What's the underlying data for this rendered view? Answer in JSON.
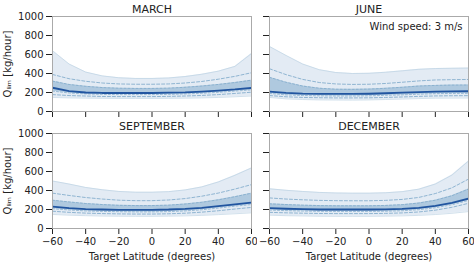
{
  "chart_data": [
    {
      "type": "line",
      "title": "MARCH",
      "ylabel": "Qₗᵢₘ [kg/hour]",
      "tick_labels": "y",
      "x": [
        -60,
        -50,
        -40,
        -30,
        -20,
        -10,
        0,
        10,
        20,
        30,
        40,
        50,
        60
      ],
      "xlim": [
        -60,
        60
      ],
      "ylim": [
        0,
        1000
      ],
      "xticks": [
        -60,
        -40,
        -20,
        0,
        20,
        40,
        60
      ],
      "yticks": [
        0,
        200,
        400,
        600,
        800,
        1000
      ],
      "series": [
        {
          "type": "area",
          "color": "#c8d8ea",
          "lower": [
            148,
            143,
            140,
            138,
            137,
            137,
            137,
            138,
            140,
            143,
            148,
            155,
            163
          ],
          "upper": [
            640,
            500,
            415,
            375,
            355,
            348,
            348,
            353,
            368,
            392,
            425,
            475,
            610
          ]
        },
        {
          "type": "area",
          "color": "#7ba7c9",
          "lower": [
            215,
            195,
            185,
            180,
            178,
            178,
            178,
            180,
            185,
            192,
            202,
            215,
            228
          ],
          "upper": [
            320,
            285,
            265,
            252,
            245,
            243,
            243,
            246,
            255,
            268,
            285,
            305,
            330
          ]
        },
        {
          "type": "line",
          "color": "#b8cfe0",
          "line_style": "solid",
          "values": [
            640,
            500,
            415,
            375,
            355,
            348,
            348,
            353,
            368,
            392,
            425,
            475,
            610
          ]
        },
        {
          "type": "line",
          "color": "#b8cfe0",
          "line_style": "solid",
          "values": [
            148,
            143,
            140,
            138,
            137,
            137,
            137,
            138,
            140,
            143,
            148,
            155,
            163
          ]
        },
        {
          "type": "line",
          "color": "#7ba7c9",
          "line_style": "dashed",
          "values": [
            178,
            168,
            163,
            158,
            157,
            157,
            157,
            159,
            163,
            169,
            178,
            190,
            203
          ]
        },
        {
          "type": "line",
          "color": "#7ba7c9",
          "line_style": "dashed",
          "values": [
            390,
            345,
            318,
            300,
            290,
            287,
            287,
            290,
            300,
            316,
            340,
            370,
            408
          ]
        },
        {
          "type": "line",
          "color": "#7ba7c9",
          "line_style": "dotted",
          "values": [
            215,
            195,
            185,
            180,
            178,
            178,
            178,
            180,
            185,
            192,
            202,
            215,
            228
          ]
        },
        {
          "type": "line",
          "color": "#7ba7c9",
          "line_style": "dotted",
          "values": [
            320,
            285,
            265,
            252,
            245,
            243,
            243,
            246,
            255,
            268,
            285,
            305,
            330
          ]
        },
        {
          "type": "line",
          "color": "#2155a0",
          "line_style": "thick",
          "values": [
            250,
            215,
            200,
            195,
            195,
            195,
            195,
            198,
            202,
            210,
            220,
            232,
            248
          ]
        }
      ]
    },
    {
      "type": "line",
      "title": "JUNE",
      "tick_labels": false,
      "annotation": "Wind speed: 3 m/s",
      "x": [
        -60,
        -50,
        -40,
        -30,
        -20,
        -10,
        0,
        10,
        20,
        30,
        40,
        50,
        60
      ],
      "xlim": [
        -60,
        60
      ],
      "ylim": [
        0,
        1000
      ],
      "xticks": [
        -60,
        -40,
        -20,
        0,
        20,
        40,
        60
      ],
      "yticks": [
        0,
        200,
        400,
        600,
        800,
        1000
      ],
      "series": [
        {
          "type": "area",
          "color": "#c8d8ea",
          "lower": [
            148,
            133,
            126,
            122,
            121,
            120,
            122,
            126,
            131,
            136,
            140,
            141,
            142
          ],
          "upper": [
            685,
            590,
            500,
            440,
            410,
            400,
            402,
            413,
            428,
            444,
            452,
            455,
            457
          ]
        },
        {
          "type": "area",
          "color": "#7ba7c9",
          "lower": [
            190,
            175,
            168,
            165,
            163,
            163,
            165,
            170,
            175,
            182,
            188,
            190,
            191
          ],
          "upper": [
            360,
            308,
            268,
            245,
            235,
            233,
            236,
            244,
            255,
            268,
            275,
            278,
            279
          ]
        },
        {
          "type": "line",
          "color": "#b8cfe0",
          "line_style": "solid",
          "values": [
            685,
            590,
            500,
            440,
            410,
            400,
            402,
            413,
            428,
            444,
            452,
            455,
            457
          ]
        },
        {
          "type": "line",
          "color": "#b8cfe0",
          "line_style": "solid",
          "values": [
            148,
            133,
            126,
            122,
            121,
            120,
            122,
            126,
            131,
            136,
            140,
            141,
            142
          ]
        },
        {
          "type": "line",
          "color": "#7ba7c9",
          "line_style": "dashed",
          "values": [
            168,
            155,
            148,
            145,
            143,
            143,
            144,
            148,
            153,
            159,
            164,
            166,
            167
          ]
        },
        {
          "type": "line",
          "color": "#7ba7c9",
          "line_style": "dashed",
          "values": [
            450,
            388,
            338,
            305,
            290,
            285,
            287,
            295,
            308,
            322,
            332,
            335,
            337
          ]
        },
        {
          "type": "line",
          "color": "#7ba7c9",
          "line_style": "dotted",
          "values": [
            190,
            175,
            168,
            165,
            163,
            163,
            165,
            170,
            175,
            182,
            188,
            190,
            191
          ]
        },
        {
          "type": "line",
          "color": "#7ba7c9",
          "line_style": "dotted",
          "values": [
            360,
            308,
            268,
            245,
            235,
            233,
            236,
            244,
            255,
            268,
            275,
            278,
            279
          ]
        },
        {
          "type": "line",
          "color": "#2155a0",
          "line_style": "thick",
          "values": [
            210,
            195,
            188,
            185,
            185,
            185,
            187,
            192,
            198,
            205,
            210,
            212,
            213
          ]
        }
      ]
    },
    {
      "type": "line",
      "title": "SEPTEMBER",
      "xlabel": "Target Latitude (degrees)",
      "ylabel": "Qₗᵢₘ [kg/hour]",
      "x": [
        -60,
        -50,
        -40,
        -30,
        -20,
        -10,
        0,
        10,
        20,
        30,
        40,
        50,
        60
      ],
      "xlim": [
        -60,
        60
      ],
      "ylim": [
        0,
        1000
      ],
      "xticks": [
        -60,
        -40,
        -20,
        0,
        20,
        40,
        60
      ],
      "yticks": [
        0,
        200,
        400,
        600,
        800,
        1000
      ],
      "series": [
        {
          "type": "area",
          "color": "#c8d8ea",
          "lower": [
            148,
            140,
            135,
            131,
            129,
            128,
            128,
            130,
            133,
            138,
            146,
            155,
            165
          ],
          "upper": [
            500,
            468,
            432,
            408,
            390,
            382,
            382,
            388,
            406,
            438,
            490,
            560,
            638
          ]
        },
        {
          "type": "area",
          "color": "#7ba7c9",
          "lower": [
            208,
            195,
            185,
            180,
            177,
            175,
            175,
            178,
            185,
            197,
            215,
            235,
            252
          ],
          "upper": [
            298,
            280,
            263,
            252,
            244,
            241,
            241,
            246,
            258,
            276,
            302,
            335,
            372
          ]
        },
        {
          "type": "line",
          "color": "#b8cfe0",
          "line_style": "solid",
          "values": [
            500,
            468,
            432,
            408,
            390,
            382,
            382,
            388,
            406,
            438,
            490,
            560,
            638
          ]
        },
        {
          "type": "line",
          "color": "#b8cfe0",
          "line_style": "solid",
          "values": [
            148,
            140,
            135,
            131,
            129,
            128,
            128,
            130,
            133,
            138,
            146,
            155,
            165
          ]
        },
        {
          "type": "line",
          "color": "#7ba7c9",
          "line_style": "dashed",
          "values": [
            182,
            170,
            162,
            157,
            154,
            152,
            152,
            155,
            161,
            172,
            187,
            205,
            222
          ]
        },
        {
          "type": "line",
          "color": "#7ba7c9",
          "line_style": "dashed",
          "values": [
            372,
            348,
            326,
            310,
            298,
            293,
            293,
            300,
            315,
            340,
            373,
            415,
            462
          ]
        },
        {
          "type": "line",
          "color": "#7ba7c9",
          "line_style": "dotted",
          "values": [
            208,
            195,
            185,
            180,
            177,
            175,
            175,
            178,
            185,
            197,
            215,
            235,
            252
          ]
        },
        {
          "type": "line",
          "color": "#7ba7c9",
          "line_style": "dotted",
          "values": [
            298,
            280,
            263,
            252,
            244,
            241,
            241,
            246,
            258,
            276,
            302,
            335,
            372
          ]
        },
        {
          "type": "line",
          "color": "#2155a0",
          "line_style": "thick",
          "values": [
            230,
            215,
            205,
            200,
            197,
            196,
            197,
            200,
            207,
            218,
            235,
            255,
            272
          ]
        }
      ]
    },
    {
      "type": "line",
      "title": "DECEMBER",
      "xlabel": "Target Latitude (degrees)",
      "tick_labels": "x",
      "x": [
        -60,
        -50,
        -40,
        -30,
        -20,
        -10,
        0,
        10,
        20,
        30,
        40,
        50,
        60
      ],
      "xlim": [
        -60,
        60
      ],
      "ylim": [
        0,
        1000
      ],
      "xticks": [
        -60,
        -40,
        -20,
        0,
        20,
        40,
        60
      ],
      "yticks": [
        0,
        200,
        400,
        600,
        800,
        1000
      ],
      "series": [
        {
          "type": "area",
          "color": "#c8d8ea",
          "lower": [
            140,
            135,
            132,
            129,
            128,
            128,
            128,
            130,
            133,
            138,
            147,
            160,
            178
          ],
          "upper": [
            418,
            402,
            390,
            380,
            374,
            372,
            372,
            376,
            388,
            414,
            468,
            562,
            710
          ]
        },
        {
          "type": "area",
          "color": "#7ba7c9",
          "lower": [
            194,
            188,
            184,
            181,
            180,
            180,
            180,
            182,
            187,
            198,
            218,
            250,
            295
          ],
          "upper": [
            260,
            252,
            246,
            241,
            239,
            239,
            239,
            243,
            251,
            268,
            298,
            345,
            415
          ]
        },
        {
          "type": "line",
          "color": "#b8cfe0",
          "line_style": "solid",
          "values": [
            418,
            402,
            390,
            380,
            374,
            372,
            372,
            376,
            388,
            414,
            468,
            562,
            710
          ]
        },
        {
          "type": "line",
          "color": "#b8cfe0",
          "line_style": "solid",
          "values": [
            140,
            135,
            132,
            129,
            128,
            128,
            128,
            130,
            133,
            138,
            147,
            160,
            178
          ]
        },
        {
          "type": "line",
          "color": "#7ba7c9",
          "line_style": "dashed",
          "values": [
            170,
            165,
            161,
            158,
            157,
            157,
            157,
            159,
            164,
            174,
            193,
            223,
            265
          ]
        },
        {
          "type": "line",
          "color": "#7ba7c9",
          "line_style": "dashed",
          "values": [
            322,
            310,
            302,
            296,
            293,
            292,
            292,
            296,
            306,
            327,
            368,
            428,
            520
          ]
        },
        {
          "type": "line",
          "color": "#7ba7c9",
          "line_style": "dotted",
          "values": [
            194,
            188,
            184,
            181,
            180,
            180,
            180,
            182,
            187,
            198,
            218,
            250,
            295
          ]
        },
        {
          "type": "line",
          "color": "#7ba7c9",
          "line_style": "dotted",
          "values": [
            260,
            252,
            246,
            241,
            239,
            239,
            239,
            243,
            251,
            268,
            298,
            345,
            415
          ]
        },
        {
          "type": "line",
          "color": "#2155a0",
          "line_style": "thick",
          "values": [
            215,
            208,
            203,
            200,
            200,
            200,
            200,
            202,
            207,
            218,
            238,
            270,
            315
          ]
        }
      ]
    }
  ]
}
